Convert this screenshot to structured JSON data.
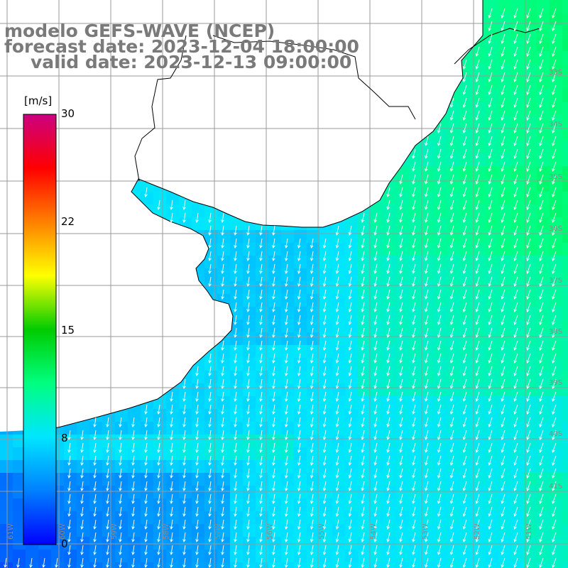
{
  "header": {
    "line1": "modelo GEFS-WAVE (NCEP)",
    "line2": "forecast date: 2023-12-04 18:00:00",
    "line3": "valid date: 2023-12-13 09:00:00"
  },
  "colorbar": {
    "unit": "[m/s]",
    "ticks": [
      {
        "value": 30,
        "label": "30"
      },
      {
        "value": 22,
        "label": "22"
      },
      {
        "value": 15,
        "label": "15"
      },
      {
        "value": 8,
        "label": "8"
      },
      {
        "value": 0,
        "label": "0"
      }
    ],
    "min": 0,
    "max": 30,
    "stops": [
      "#0000ff",
      "#0080ff",
      "#00e6ff",
      "#00ff80",
      "#00cc00",
      "#ffff00",
      "#ff8000",
      "#ff0000",
      "#cc0080"
    ]
  },
  "map": {
    "lat_labels": [
      "33S",
      "34S",
      "35S",
      "36S",
      "37S",
      "38S",
      "39S",
      "40S",
      "41S"
    ],
    "lon_labels": [
      "61W",
      "60W",
      "59W",
      "58W",
      "57W",
      "56W",
      "55W",
      "54W",
      "53W",
      "52W",
      "51W"
    ],
    "land_color": "#ffffff",
    "grid_color": "#9a9a9a",
    "arrow_color": "#ffffff",
    "coast_color": "#000000"
  }
}
